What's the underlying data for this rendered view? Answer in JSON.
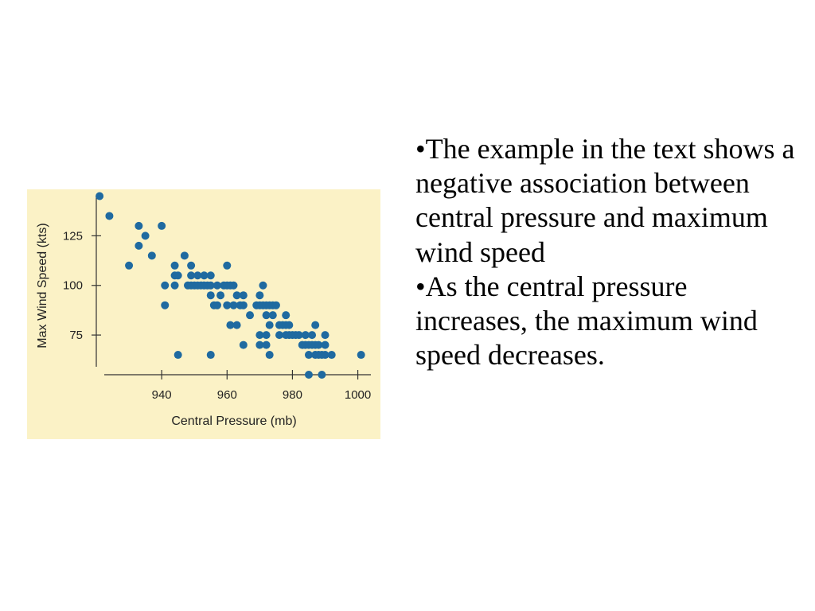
{
  "chart_data": {
    "type": "scatter",
    "xlabel": "Central Pressure (mb)",
    "ylabel": "Max Wind Speed (kts)",
    "xlim": [
      920,
      1004
    ],
    "ylim": [
      55,
      146
    ],
    "xticks": [
      "940",
      "960",
      "980",
      "1000"
    ],
    "yticks": [
      "125",
      "100",
      "75"
    ],
    "point_color": "#1f6aa0",
    "background": "#fbf2c6",
    "grid": false,
    "points": [
      [
        921,
        145
      ],
      [
        924,
        135
      ],
      [
        930,
        110
      ],
      [
        933,
        130
      ],
      [
        933,
        120
      ],
      [
        935,
        125
      ],
      [
        937,
        115
      ],
      [
        940,
        130
      ],
      [
        941,
        100
      ],
      [
        941,
        90
      ],
      [
        944,
        110
      ],
      [
        944,
        105
      ],
      [
        944,
        100
      ],
      [
        945,
        105
      ],
      [
        945,
        65
      ],
      [
        947,
        115
      ],
      [
        948,
        100
      ],
      [
        949,
        105
      ],
      [
        949,
        100
      ],
      [
        949,
        110
      ],
      [
        950,
        100
      ],
      [
        951,
        105
      ],
      [
        951,
        100
      ],
      [
        952,
        100
      ],
      [
        953,
        105
      ],
      [
        953,
        100
      ],
      [
        954,
        100
      ],
      [
        955,
        105
      ],
      [
        955,
        100
      ],
      [
        955,
        95
      ],
      [
        955,
        65
      ],
      [
        956,
        90
      ],
      [
        957,
        100
      ],
      [
        957,
        90
      ],
      [
        958,
        95
      ],
      [
        959,
        100
      ],
      [
        960,
        100
      ],
      [
        960,
        90
      ],
      [
        960,
        110
      ],
      [
        961,
        100
      ],
      [
        961,
        80
      ],
      [
        962,
        90
      ],
      [
        962,
        100
      ],
      [
        963,
        80
      ],
      [
        963,
        95
      ],
      [
        964,
        90
      ],
      [
        965,
        95
      ],
      [
        965,
        90
      ],
      [
        965,
        70
      ],
      [
        967,
        85
      ],
      [
        969,
        90
      ],
      [
        970,
        90
      ],
      [
        970,
        75
      ],
      [
        970,
        70
      ],
      [
        970,
        95
      ],
      [
        971,
        90
      ],
      [
        971,
        100
      ],
      [
        972,
        85
      ],
      [
        972,
        90
      ],
      [
        972,
        75
      ],
      [
        972,
        70
      ],
      [
        973,
        90
      ],
      [
        973,
        80
      ],
      [
        973,
        65
      ],
      [
        974,
        90
      ],
      [
        974,
        85
      ],
      [
        975,
        90
      ],
      [
        976,
        80
      ],
      [
        976,
        75
      ],
      [
        977,
        80
      ],
      [
        978,
        80
      ],
      [
        978,
        75
      ],
      [
        978,
        85
      ],
      [
        979,
        80
      ],
      [
        979,
        75
      ],
      [
        980,
        75
      ],
      [
        981,
        75
      ],
      [
        982,
        75
      ],
      [
        983,
        70
      ],
      [
        984,
        70
      ],
      [
        984,
        75
      ],
      [
        985,
        70
      ],
      [
        985,
        65
      ],
      [
        985,
        55
      ],
      [
        986,
        70
      ],
      [
        986,
        75
      ],
      [
        987,
        65
      ],
      [
        987,
        70
      ],
      [
        987,
        80
      ],
      [
        988,
        70
      ],
      [
        988,
        65
      ],
      [
        989,
        65
      ],
      [
        989,
        55
      ],
      [
        990,
        75
      ],
      [
        990,
        70
      ],
      [
        990,
        65
      ],
      [
        992,
        65
      ],
      [
        1001,
        65
      ]
    ]
  },
  "bullets": [
    "•The example in the text shows a negative association between central pressure and maximum wind speed",
    "•As the central pressure increases, the maximum wind speed decreases."
  ]
}
